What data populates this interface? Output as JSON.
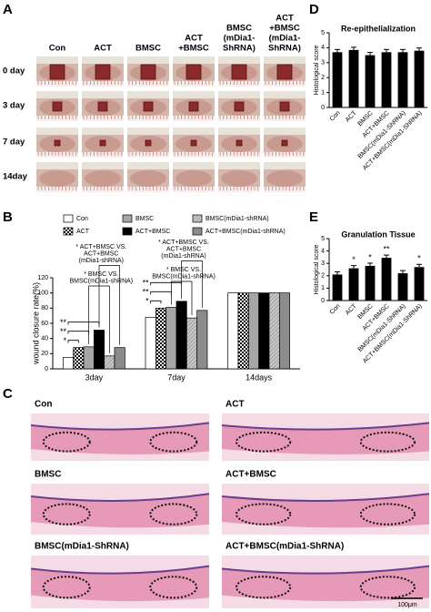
{
  "panel_labels": {
    "a": "A",
    "b": "B",
    "c": "C",
    "d": "D",
    "e": "E"
  },
  "panel_a": {
    "columns": [
      [
        "Con"
      ],
      [
        "ACT"
      ],
      [
        "BMSC"
      ],
      [
        "ACT",
        "+BMSC"
      ],
      [
        "BMSC",
        "(mDia1-",
        "ShRNA)"
      ],
      [
        "ACT",
        "+BMSC",
        "(mDia1-",
        "ShRNA)"
      ]
    ],
    "rows": [
      "0 day",
      "3 day",
      "7 day",
      "14day"
    ]
  },
  "panel_c": {
    "labels": [
      "Con",
      "ACT",
      "BMSC",
      "ACT+BMSC",
      "BMSC(mDia1-ShRNA)",
      "ACT+BMSC(mDia1-ShRNA)"
    ],
    "scale_bar": "100μm"
  },
  "chart_data": [
    {
      "type": "bar",
      "ylabel": "wound closure rate(%)",
      "categories": [
        "3day",
        "7day",
        "14days"
      ],
      "series": [
        {
          "name": "Con",
          "color": "#ffffff",
          "values": [
            15,
            68,
            100
          ]
        },
        {
          "name": "ACT",
          "color": "#ffffff",
          "pattern": "checkered",
          "values": [
            28,
            80,
            100
          ]
        },
        {
          "name": "BMSC",
          "color": "#a6a6a6",
          "values": [
            29,
            81,
            100
          ]
        },
        {
          "name": "ACT+BMSC",
          "color": "#000000",
          "values": [
            51,
            89,
            100
          ]
        },
        {
          "name": "BMSC(mDia1-shRNA)",
          "color": "#c8c8c8",
          "pattern": "hatched",
          "values": [
            17,
            67,
            100
          ]
        },
        {
          "name": "ACT+BMSC(mDia1-shRNA)",
          "color": "#8c8c8c",
          "values": [
            28,
            77,
            100
          ]
        }
      ],
      "ylim": [
        0,
        120
      ],
      "yticks": [
        0,
        20,
        40,
        60,
        80,
        100,
        120
      ],
      "significance_vs_con": [
        [
          "*",
          "**",
          "**"
        ],
        [
          "*",
          "**",
          "**"
        ]
      ],
      "shrna_comparisons": [
        [
          [
            "* BMSC VS.",
            "BMSC(mDia1-shRNA)"
          ],
          [
            "* ACT+BMSC VS.",
            "ACT+BMSC",
            "(mDia1-shRNA)"
          ]
        ],
        [
          [
            "* BMSC VS.",
            "BMSC(mDia1-shRNA)"
          ],
          [
            "* ACT+BMSC VS.",
            "ACT+BMSC",
            "(mDia1-shRNA)"
          ]
        ]
      ]
    },
    {
      "type": "bar",
      "title": "Re-epithelialization",
      "ylabel": "Histological score",
      "categories": [
        "Con",
        "ACT",
        "BMSC",
        "ACT+BMSC",
        "BMSC(mDia1-ShRNA)",
        "ACT+BMSC(mDia1-ShRNA)"
      ],
      "values": [
        3.7,
        3.85,
        3.5,
        3.7,
        3.7,
        3.8
      ],
      "color": "#000000",
      "ylim": [
        0,
        5
      ],
      "yticks": [
        0,
        1,
        2,
        3,
        4,
        5
      ]
    },
    {
      "type": "bar",
      "title": "Granulation Tissue",
      "ylabel": "Histological score",
      "categories": [
        "Con",
        "ACT",
        "BMSC",
        "ACT+BMSC",
        "BMSC(mDia1-ShRNA)",
        "ACT+BMSC(mDia1-ShRNA)"
      ],
      "values": [
        2.1,
        2.6,
        2.8,
        3.45,
        2.2,
        2.7
      ],
      "color": "#000000",
      "significance": [
        null,
        "*",
        "*",
        "**",
        null,
        "*"
      ],
      "ylim": [
        0,
        5
      ],
      "yticks": [
        0,
        1,
        2,
        3,
        4,
        5
      ]
    }
  ]
}
